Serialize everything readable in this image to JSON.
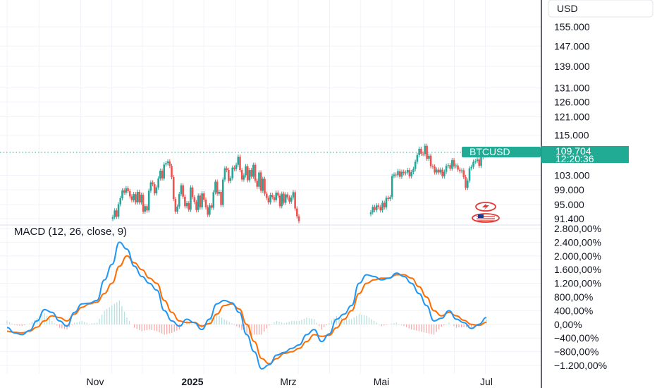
{
  "currency_button": "USD",
  "symbol": "BTCUSD",
  "last_price": "109.704",
  "countdown": "12:20:36",
  "macd_title": "MACD (12, 26, close, 9)",
  "colors": {
    "up": "#26a69a",
    "down": "#ef5350",
    "macd": "#2196f3",
    "signal": "#ff6d00",
    "price_tag": "#22ab94",
    "grid": "#f0f3fa",
    "border": "#2a2e39"
  },
  "icons": [
    "flash-icon",
    "us-flag-icon"
  ],
  "chart_data": [
    {
      "type": "candlestick",
      "title": "",
      "y_scale": "log",
      "y_ticks": [
        "155.000",
        "147.000",
        "139.000",
        "131.000",
        "126.000",
        "121.000",
        "115.000",
        "103.000",
        "99.000",
        "95.000",
        "91.400"
      ],
      "y_tick_values": [
        155000,
        147000,
        139000,
        131000,
        126000,
        121000,
        115000,
        103000,
        99000,
        95000,
        91400
      ],
      "x_ticks": [
        "Nov",
        "2025",
        "Mrz",
        "Mai",
        "Jul"
      ],
      "last_price_value": 109704,
      "segments": [
        {
          "closes": [
            91800,
            93500,
            91900,
            95100,
            96700,
            98800,
            98200,
            99400,
            98600,
            97200,
            96200,
            97800,
            95600,
            98400,
            95600,
            97600,
            93200,
            94600,
            93500,
            98700,
            101000,
            100500,
            98000,
            99600,
            102100,
            104300,
            102100,
            106100,
            106500,
            107000,
            105700,
            102500,
            96500,
            93200,
            94500,
            97800,
            100200,
            97100,
            94600,
            95400,
            93700,
            99600,
            97000,
            95700,
            93600,
            97400,
            94300,
            98000,
            96300,
            94300,
            92400,
            94800,
            94200,
            98300,
            101200,
            97900,
            98400,
            94900,
            101800,
            105000,
            104500,
            101400,
            102200,
            105200,
            104800,
            106000,
            108400,
            104500,
            101800,
            103000,
            105600,
            101600,
            104500,
            102600,
            106000,
            101500,
            99800,
            103800,
            98700,
            102000,
            97900,
            96800,
            95600,
            97600,
            97000,
            96200,
            98200,
            97400,
            94600,
            97900,
            95500,
            97700,
            96900,
            95800,
            96900,
            98300,
            94000,
            92000,
            90800
          ]
        },
        {
          "closes": [
            93000,
            94400,
            93600,
            94800,
            94400,
            93500,
            95500,
            94300,
            96800,
            96500,
            97000,
            102800,
            103200,
            103000,
            104200,
            102600,
            104000,
            103600,
            103800,
            104500,
            102700,
            103900,
            104800,
            106900,
            108900,
            110800,
            109300,
            109200,
            111700,
            107800,
            108700,
            105600,
            105500,
            103800,
            104600,
            103800,
            104600,
            102700,
            104000,
            105700,
            105900,
            104900,
            107400,
            105600,
            105800,
            104600,
            104200,
            104400,
            102500,
            99500,
            101500,
            105000,
            105400,
            106900,
            107100,
            107600,
            105700,
            108300,
            108800,
            109704
          ]
        }
      ]
    },
    {
      "type": "line",
      "title": "MACD (12, 26, close, 9)",
      "y_ticks": [
        "2.800,00%",
        "2.400,00%",
        "2.000,00%",
        "1.600,00%",
        "1.200,00%",
        "800,00%",
        "400,00%",
        "0,00%",
        "−400,00%",
        "−800,00%",
        "−1.200,00%"
      ],
      "y_tick_values": [
        2800,
        2400,
        2000,
        1600,
        1200,
        800,
        400,
        0,
        -400,
        -800,
        -1200
      ],
      "x_month_start_index": [
        0,
        24.5,
        56.4,
        80.1,
        103.5,
        127.2,
        150.5,
        174.7,
        199.3,
        222.6,
        246.6,
        270.5,
        294.3,
        318.5,
        342.1,
        365.7
      ],
      "series": [
        {
          "role": "macd",
          "values": [
            -90,
            -250,
            -300,
            -180,
            100,
            430,
            350,
            100,
            -50,
            350,
            600,
            620,
            700,
            1300,
            1750,
            2400,
            2200,
            1700,
            1400,
            1200,
            1000,
            400,
            100,
            -50,
            150,
            50,
            -150,
            150,
            600,
            700,
            630,
            350,
            -300,
            -800,
            -1300,
            -1180,
            -900,
            -820,
            -700,
            -600,
            -300,
            -150,
            -500,
            -280,
            150,
            300,
            550,
            1200,
            1450,
            1400,
            1300,
            1350,
            1500,
            1400,
            1200,
            900,
            550,
            100,
            180,
            400,
            150,
            50,
            -120,
            0,
            200
          ]
        },
        {
          "role": "signal",
          "values": [
            -200,
            -230,
            -250,
            -200,
            -80,
            100,
            250,
            200,
            100,
            300,
            500,
            600,
            650,
            900,
            1200,
            1700,
            2000,
            1800,
            1600,
            1350,
            1200,
            700,
            350,
            100,
            50,
            60,
            -50,
            20,
            300,
            550,
            600,
            450,
            0,
            -500,
            -1000,
            -1150,
            -1000,
            -850,
            -800,
            -700,
            -500,
            -300,
            -350,
            -320,
            -100,
            150,
            400,
            900,
            1200,
            1300,
            1350,
            1350,
            1450,
            1450,
            1350,
            1100,
            800,
            400,
            250,
            350,
            250,
            120,
            0,
            -30,
            60
          ]
        },
        {
          "role": "histogram",
          "values": [
            110,
            -20,
            -50,
            20,
            180,
            330,
            100,
            -100,
            -150,
            50,
            100,
            20,
            50,
            400,
            550,
            700,
            200,
            -100,
            -200,
            -150,
            -200,
            -300,
            -250,
            -150,
            100,
            -10,
            -100,
            130,
            300,
            150,
            30,
            -100,
            -300,
            -300,
            -300,
            -30,
            100,
            30,
            100,
            100,
            200,
            150,
            -150,
            40,
            250,
            150,
            150,
            300,
            250,
            100,
            -50,
            0,
            50,
            -50,
            -150,
            -200,
            -250,
            -300,
            -70,
            50,
            -100,
            -70,
            -120,
            30,
            140
          ]
        }
      ]
    }
  ]
}
